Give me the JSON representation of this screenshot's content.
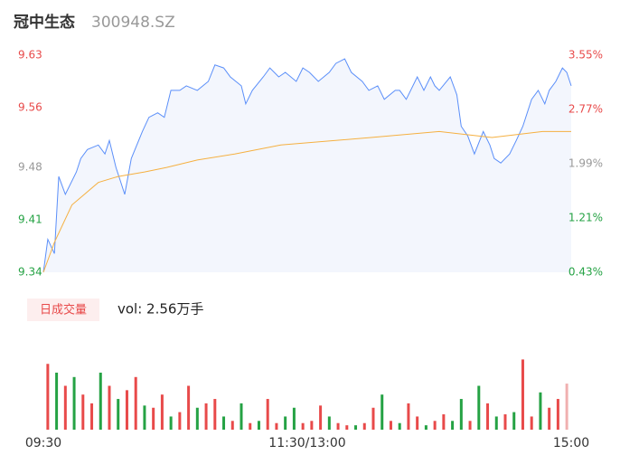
{
  "header": {
    "name": "冠中生态",
    "code": "300948.SZ"
  },
  "chart_data": [
    {
      "type": "line",
      "xlim": [
        0,
        240
      ],
      "ylim": [
        9.34,
        9.63
      ],
      "yticks": [
        9.63,
        9.56,
        9.48,
        9.41,
        9.34
      ],
      "ytick_colors": [
        "#e84a4a",
        "#e84a4a",
        "#999999",
        "#25a244",
        "#25a244"
      ],
      "y2lim": [
        0.43,
        3.55
      ],
      "y2ticks": [
        {
          "value": 3.55,
          "label": "3.55%"
        },
        {
          "value": 2.77,
          "label": "2.77%"
        },
        {
          "value": 1.99,
          "label": "1.99%"
        },
        {
          "value": 1.21,
          "label": "1.21%"
        },
        {
          "value": 0.43,
          "label": "0.43%"
        }
      ],
      "area_color": "#f3f6fd",
      "series": [
        {
          "color": "#5b8ff9",
          "x": [
            0,
            2,
            5,
            7,
            10,
            15,
            17,
            20,
            25,
            28,
            30,
            33,
            35,
            37,
            40,
            45,
            48,
            52,
            55,
            58,
            62,
            65,
            70,
            75,
            78,
            82,
            85,
            90,
            92,
            95,
            100,
            103,
            107,
            110,
            115,
            118,
            121,
            125,
            130,
            133,
            137,
            140,
            145,
            148,
            152,
            155,
            160,
            162,
            165,
            170,
            173,
            176,
            178,
            180,
            185,
            188,
            190,
            193,
            196,
            200,
            203,
            205,
            208,
            212,
            215,
            218,
            222,
            225,
            228,
            230,
            233,
            236,
            238,
            240
          ],
          "values": [
            9.34,
            9.384,
            9.365,
            9.468,
            9.444,
            9.474,
            9.492,
            9.504,
            9.51,
            9.498,
            9.516,
            9.48,
            9.462,
            9.444,
            9.492,
            9.528,
            9.547,
            9.553,
            9.547,
            9.583,
            9.583,
            9.589,
            9.583,
            9.595,
            9.617,
            9.613,
            9.601,
            9.589,
            9.565,
            9.583,
            9.601,
            9.613,
            9.601,
            9.607,
            9.595,
            9.613,
            9.607,
            9.595,
            9.607,
            9.619,
            9.625,
            9.607,
            9.595,
            9.583,
            9.589,
            9.571,
            9.583,
            9.583,
            9.571,
            9.601,
            9.583,
            9.601,
            9.589,
            9.583,
            9.601,
            9.577,
            9.535,
            9.522,
            9.498,
            9.528,
            9.51,
            9.492,
            9.486,
            9.498,
            9.516,
            9.535,
            9.571,
            9.583,
            9.565,
            9.583,
            9.595,
            9.613,
            9.607,
            9.589
          ]
        },
        {
          "color": "#f5b041",
          "x": [
            0,
            5,
            13,
            17,
            25,
            34,
            46,
            56,
            70,
            87,
            108,
            149,
            180,
            204,
            227,
            240
          ],
          "values": [
            9.34,
            9.38,
            9.43,
            9.44,
            9.46,
            9.468,
            9.474,
            9.48,
            9.49,
            9.498,
            9.51,
            9.52,
            9.528,
            9.52,
            9.528,
            9.528
          ]
        }
      ]
    },
    {
      "type": "bar",
      "tab": "日成交量",
      "summary": "vol: 2.56万手",
      "xlim": [
        0,
        240
      ],
      "ylim": [
        0,
        2000
      ],
      "xticks": [
        {
          "value": 0,
          "label": "09:30"
        },
        {
          "value": 120,
          "label": "11:30/13:00"
        },
        {
          "value": 240,
          "label": "15:00"
        }
      ],
      "x": [
        2,
        6,
        10,
        14,
        18,
        22,
        26,
        30,
        34,
        38,
        42,
        46,
        50,
        54,
        58,
        62,
        66,
        70,
        74,
        78,
        82,
        86,
        90,
        94,
        98,
        102,
        106,
        110,
        114,
        118,
        122,
        126,
        130,
        134,
        138,
        142,
        146,
        150,
        154,
        158,
        162,
        166,
        170,
        174,
        178,
        182,
        186,
        190,
        194,
        198,
        202,
        206,
        210,
        214,
        218,
        222,
        226,
        230,
        234,
        238
      ],
      "values": [
        1500,
        1300,
        1000,
        1200,
        800,
        600,
        1300,
        1000,
        700,
        900,
        1200,
        550,
        500,
        800,
        300,
        400,
        1000,
        500,
        600,
        700,
        300,
        200,
        600,
        150,
        200,
        700,
        150,
        300,
        500,
        150,
        200,
        550,
        300,
        150,
        100,
        100,
        150,
        500,
        800,
        200,
        150,
        600,
        300,
        100,
        200,
        350,
        200,
        700,
        200,
        1000,
        600,
        300,
        350,
        400,
        1600,
        300,
        850,
        500,
        700,
        1050
      ],
      "colors": [
        "#e84a4a",
        "#25a244",
        "#e84a4a",
        "#25a244",
        "#e84a4a",
        "#e84a4a",
        "#25a244",
        "#e84a4a",
        "#25a244",
        "#e84a4a",
        "#e84a4a",
        "#25a244",
        "#e84a4a",
        "#e84a4a",
        "#25a244",
        "#e84a4a",
        "#e84a4a",
        "#25a244",
        "#e84a4a",
        "#e84a4a",
        "#25a244",
        "#e84a4a",
        "#25a244",
        "#e84a4a",
        "#25a244",
        "#e84a4a",
        "#e84a4a",
        "#25a244",
        "#25a244",
        "#e84a4a",
        "#e84a4a",
        "#e84a4a",
        "#25a244",
        "#e84a4a",
        "#e84a4a",
        "#25a244",
        "#e84a4a",
        "#e84a4a",
        "#25a244",
        "#e84a4a",
        "#25a244",
        "#e84a4a",
        "#e84a4a",
        "#25a244",
        "#e84a4a",
        "#e84a4a",
        "#25a244",
        "#25a244",
        "#e84a4a",
        "#25a244",
        "#e84a4a",
        "#25a244",
        "#e84a4a",
        "#25a244",
        "#e84a4a",
        "#e84a4a",
        "#25a244",
        "#e84a4a",
        "#e84a4a",
        "#f0b0b0"
      ]
    }
  ]
}
